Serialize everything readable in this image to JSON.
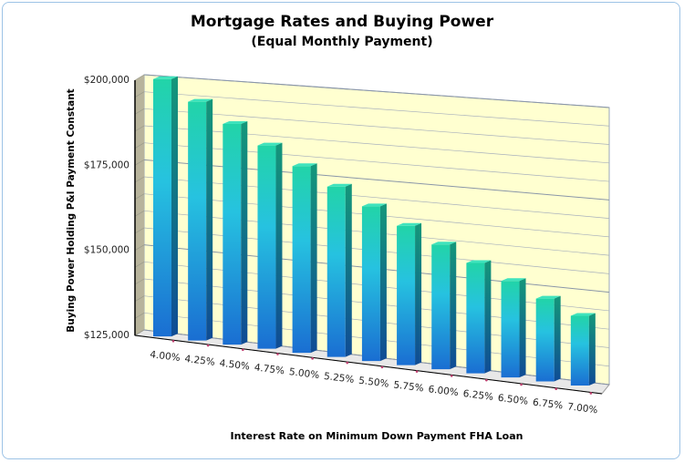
{
  "chart_data": {
    "type": "bar",
    "title": "Mortgage Rates and Buying Power",
    "subtitle": "(Equal Monthly Payment)",
    "xlabel": "Interest Rate on Minimum Down Payment FHA Loan",
    "ylabel": "Buying Power Holding P&I Payment Constant",
    "categories": [
      "4.00%",
      "4.25%",
      "4.50%",
      "4.75%",
      "5.00%",
      "5.25%",
      "5.50%",
      "5.75%",
      "6.00%",
      "6.25%",
      "6.50%",
      "6.75%",
      "7.00%"
    ],
    "values": [
      200000,
      194100,
      188400,
      183000,
      177900,
      172900,
      168200,
      163600,
      159300,
      155100,
      151100,
      147200,
      143500
    ],
    "ylim": [
      125000,
      200000
    ],
    "yticks": [
      125000,
      150000,
      175000,
      200000
    ],
    "ytick_labels": [
      "$125,000",
      "$150,000",
      "$175,000",
      "$200,000"
    ],
    "minor_grid_step": 5000,
    "grid": true,
    "legend": "none",
    "style": "3d-column",
    "colors": {
      "bar_top": "#22d4a8",
      "bar_bottom": "#1a72d6",
      "wall": "#ffffd0",
      "side_wall": "#b8b49c",
      "frame": "#9dc3e6"
    }
  }
}
